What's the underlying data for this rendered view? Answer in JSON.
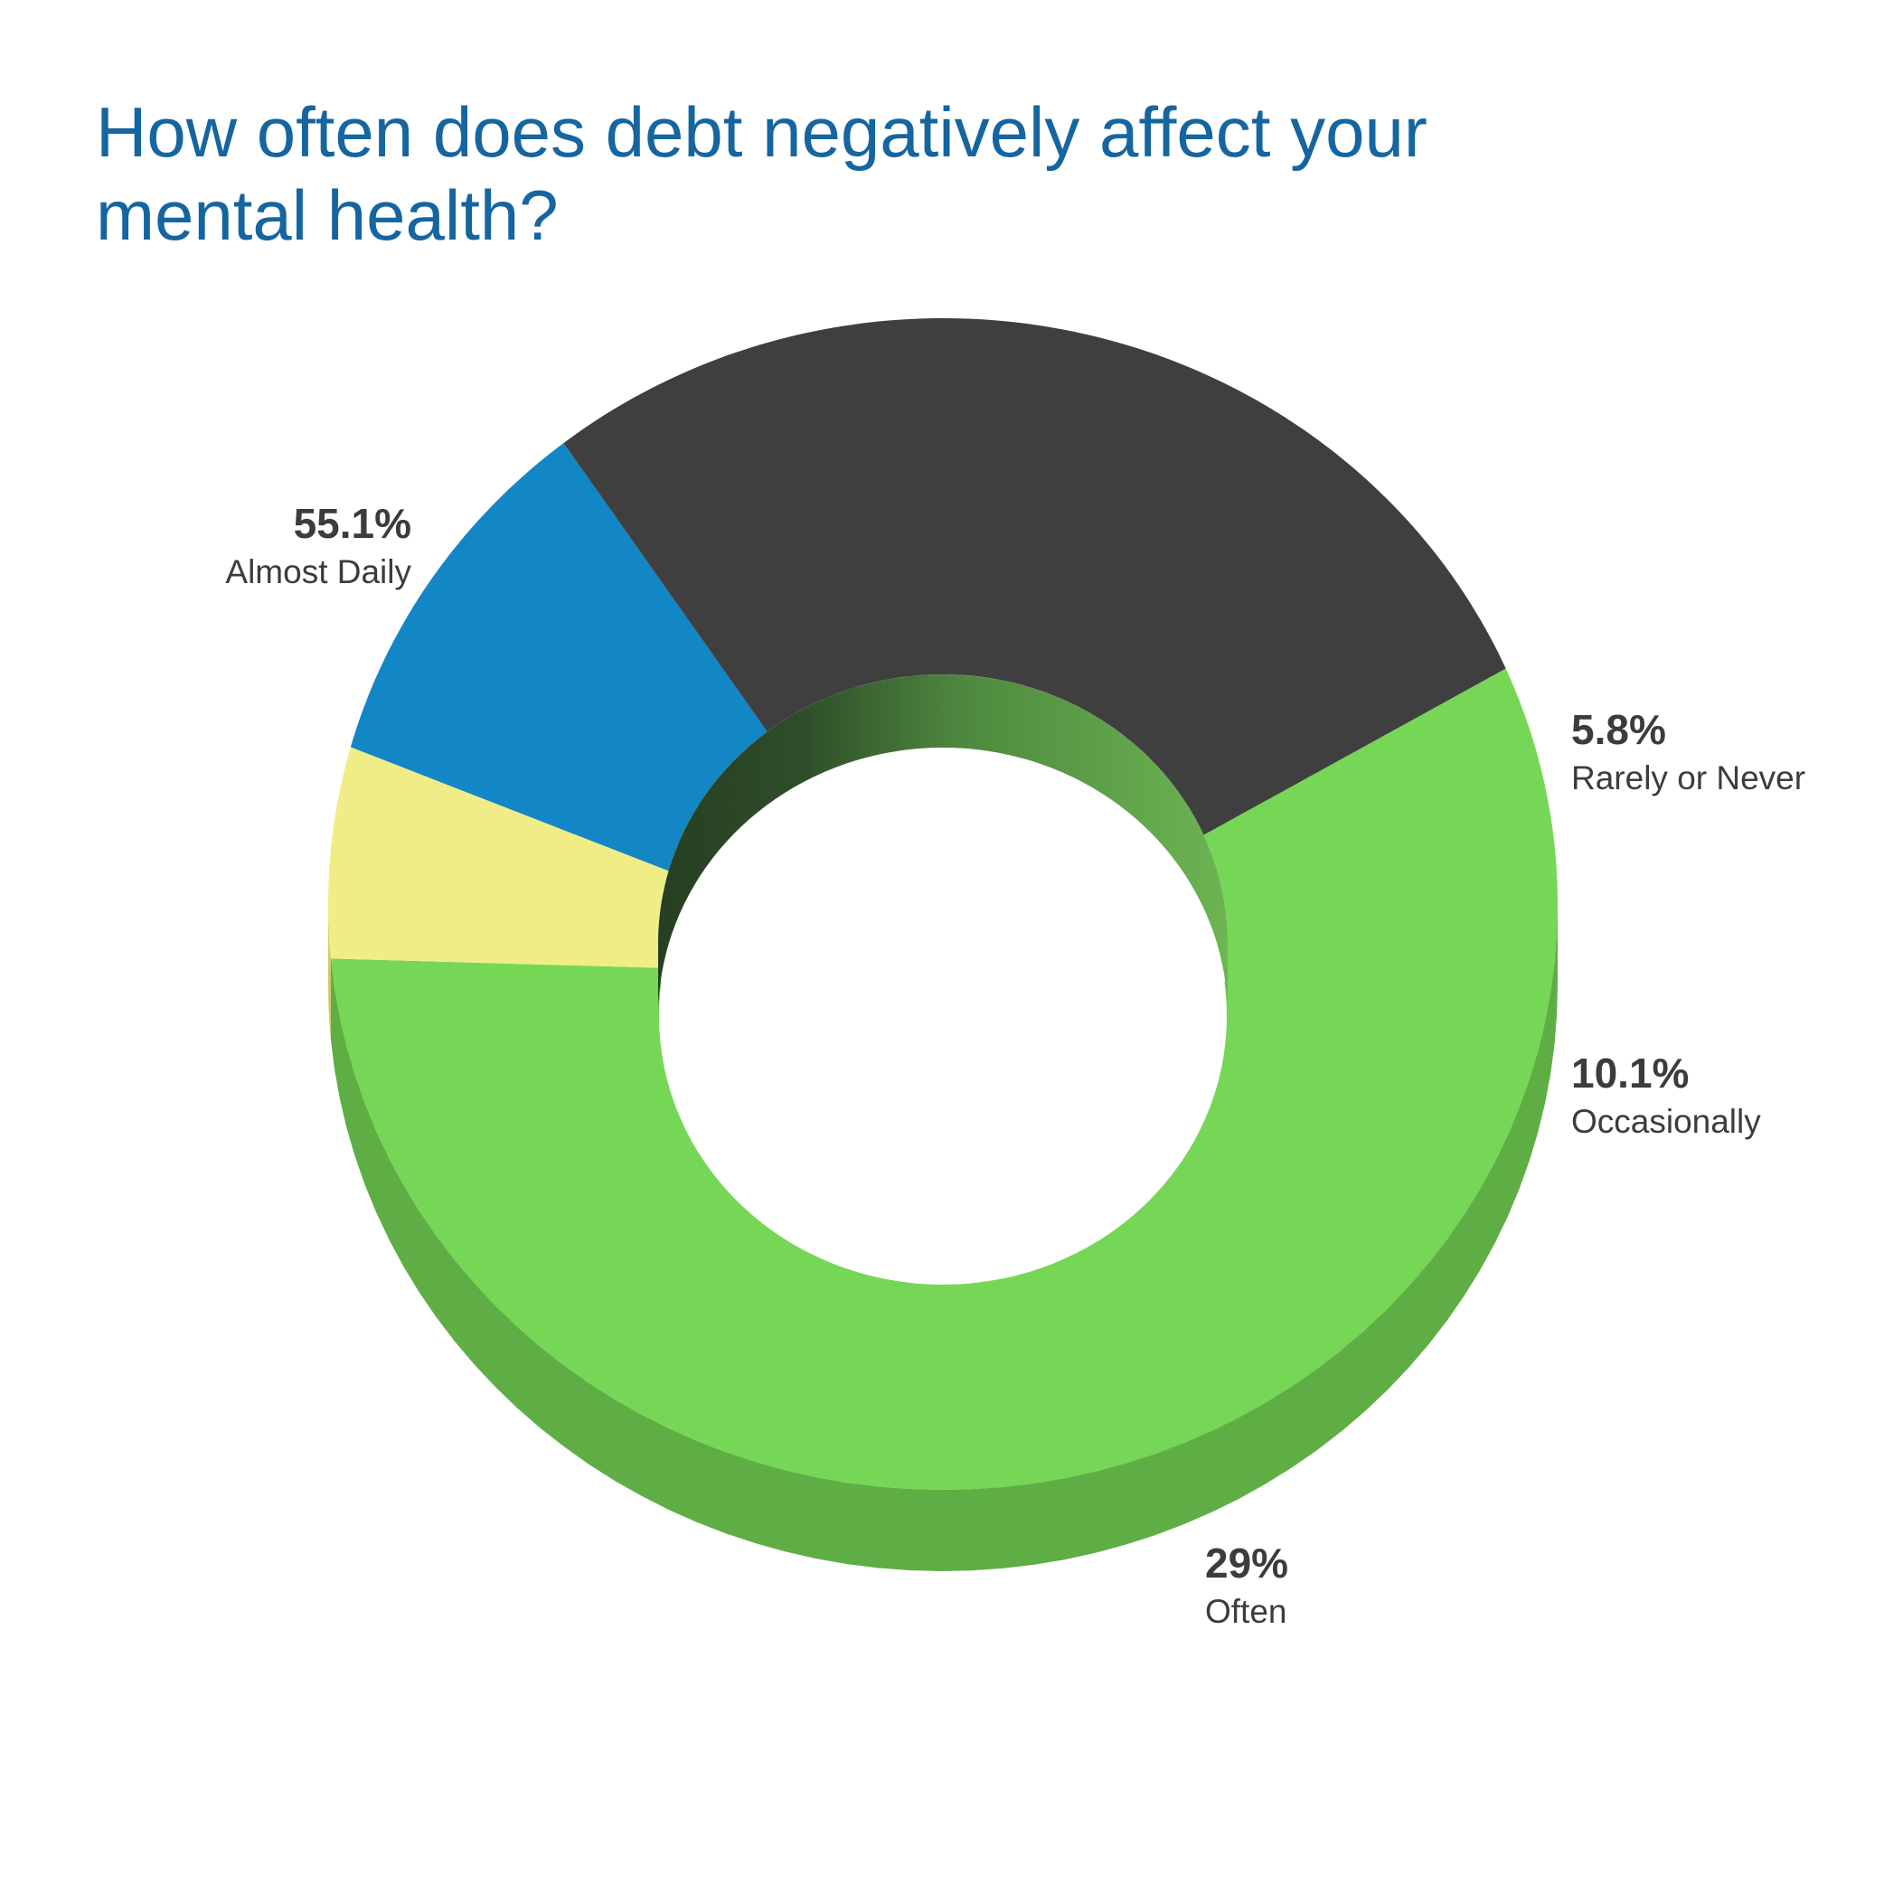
{
  "chart_data": {
    "type": "pie",
    "title": "How often does debt negatively affect your mental health?",
    "categories": [
      "Almost Daily",
      "Rarely or Never",
      "Occasionally",
      "Often"
    ],
    "values": [
      55.1,
      5.8,
      10.1,
      29
    ],
    "value_labels": [
      "55.1%",
      "5.8%",
      "10.1%",
      "29%"
    ],
    "unit": "%",
    "style": "3d-donut",
    "colors": [
      "#76d756",
      "#f1ed86",
      "#1386c5",
      "#3f3f3f"
    ],
    "side_colors": [
      "#5fae45",
      "#cfcb6b",
      "#223448",
      "#262626"
    ],
    "label_colors": {
      "title": "#1565a0",
      "labels": "#3c3c3c"
    }
  }
}
